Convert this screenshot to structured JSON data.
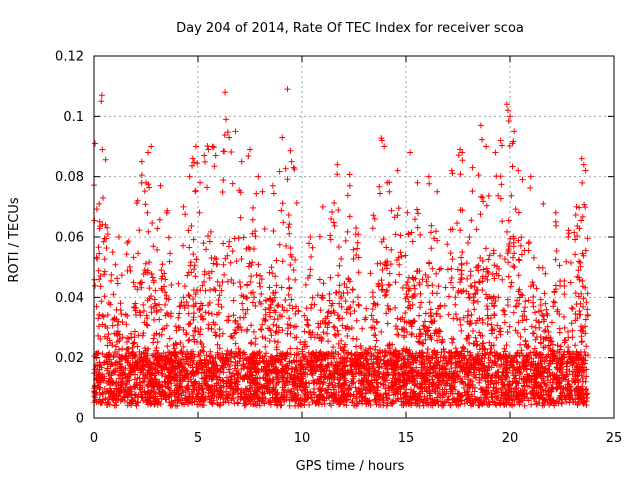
{
  "chart_data": {
    "type": "scatter",
    "title": "Day 204 of 2014, Rate Of TEC Index for receiver scoa",
    "xlabel": "GPS time / hours",
    "ylabel": "ROTI / TECUs",
    "xlim": [
      0,
      25
    ],
    "ylim": [
      0,
      0.12
    ],
    "x_ticks": [
      "0",
      "5",
      "10",
      "15",
      "20",
      "25"
    ],
    "y_ticks": [
      "0",
      "0.02",
      "0.04",
      "0.06",
      "0.08",
      "0.1",
      "0.12"
    ],
    "grid": true,
    "marker": "plus",
    "color": "#ff0000",
    "x_data_range": [
      0,
      23.75
    ],
    "series": [
      {
        "points": [
          [
            0.05,
            0.091
          ],
          [
            0.25,
            0.071
          ],
          [
            0.35,
            0.105
          ],
          [
            0.38,
            0.107
          ],
          [
            0.4,
            0.089
          ],
          [
            0.55,
            0.064
          ],
          [
            0.9,
            0.055
          ],
          [
            1.2,
            0.06
          ],
          [
            1.6,
            0.058
          ],
          [
            2.1,
            0.072
          ],
          [
            2.3,
            0.085
          ],
          [
            2.5,
            0.078
          ],
          [
            2.6,
            0.088
          ],
          [
            2.75,
            0.09
          ],
          [
            3.2,
            0.077
          ],
          [
            3.5,
            0.068
          ],
          [
            4.3,
            0.07
          ],
          [
            4.6,
            0.08
          ],
          [
            4.75,
            0.086
          ],
          [
            4.9,
            0.09
          ],
          [
            5.1,
            0.078
          ],
          [
            5.3,
            0.087
          ],
          [
            5.5,
            0.089
          ],
          [
            5.7,
            0.09
          ],
          [
            5.85,
            0.087
          ],
          [
            6.3,
            0.108
          ],
          [
            6.35,
            0.099
          ],
          [
            6.5,
            0.093
          ],
          [
            6.8,
            0.095
          ],
          [
            7.1,
            0.085
          ],
          [
            7.5,
            0.089
          ],
          [
            7.9,
            0.08
          ],
          [
            8.1,
            0.075
          ],
          [
            8.6,
            0.077
          ],
          [
            9.05,
            0.093
          ],
          [
            9.3,
            0.109
          ],
          [
            9.5,
            0.085
          ],
          [
            9.6,
            0.083
          ],
          [
            10.4,
            0.06
          ],
          [
            11.0,
            0.07
          ],
          [
            11.4,
            0.066
          ],
          [
            11.7,
            0.084
          ],
          [
            12.3,
            0.077
          ],
          [
            12.6,
            0.063
          ],
          [
            13.5,
            0.066
          ],
          [
            13.85,
            0.092
          ],
          [
            13.95,
            0.09
          ],
          [
            14.2,
            0.075
          ],
          [
            14.6,
            0.082
          ],
          [
            15.2,
            0.088
          ],
          [
            15.55,
            0.078
          ],
          [
            16.1,
            0.08
          ],
          [
            16.5,
            0.075
          ],
          [
            17.2,
            0.082
          ],
          [
            17.6,
            0.089
          ],
          [
            17.7,
            0.088
          ],
          [
            18.2,
            0.083
          ],
          [
            18.6,
            0.097
          ],
          [
            18.85,
            0.09
          ],
          [
            19.3,
            0.088
          ],
          [
            19.55,
            0.092
          ],
          [
            19.85,
            0.104
          ],
          [
            19.9,
            0.102
          ],
          [
            20.0,
            0.1
          ],
          [
            20.2,
            0.095
          ],
          [
            20.4,
            0.082
          ],
          [
            20.6,
            0.079
          ],
          [
            21.0,
            0.08
          ],
          [
            21.6,
            0.071
          ],
          [
            22.2,
            0.065
          ],
          [
            22.8,
            0.06
          ],
          [
            23.2,
            0.07
          ],
          [
            23.45,
            0.086
          ],
          [
            23.55,
            0.084
          ]
        ]
      }
    ]
  }
}
